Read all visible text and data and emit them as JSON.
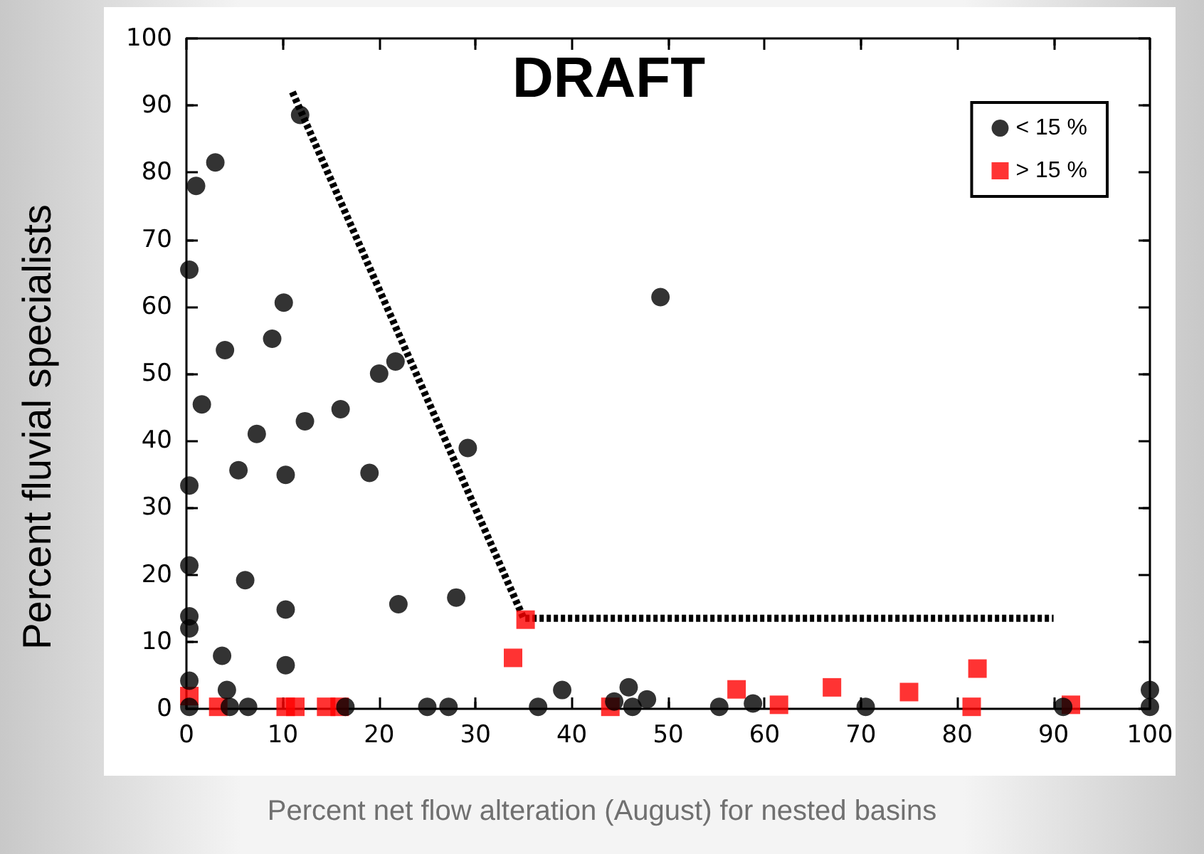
{
  "chart_data": {
    "type": "scatter",
    "xlabel": "Percent net flow alteration (August) for nested basins",
    "ylabel": "Percent fluvial specialists",
    "annotations": [
      "DRAFT"
    ],
    "xlim": [
      0,
      100
    ],
    "xticks": [
      0,
      10,
      20,
      30,
      40,
      50,
      60,
      70,
      80,
      90,
      100
    ],
    "ylim": [
      0,
      100
    ],
    "yticks": [
      0,
      10,
      20,
      30,
      40,
      50,
      60,
      70,
      80,
      90,
      100
    ],
    "grid": false,
    "legend": "top right",
    "series": [
      {
        "name": "< 15 %",
        "color": "#000000",
        "marker": "circle",
        "x": [
          0.3,
          1,
          3,
          0.3,
          0.3,
          0.3,
          0.3,
          0.3,
          0.3,
          1.6,
          4,
          3.7,
          4.2,
          4.5,
          5.4,
          6.1,
          6.4,
          7.3,
          8.9,
          10.1,
          10.3,
          10.3,
          10.3,
          11.8,
          12.3,
          16,
          16.5,
          19,
          20,
          21.7,
          22,
          25,
          27.2,
          28,
          29.2,
          36.5,
          39,
          44.4,
          45.9,
          46.3,
          47.8,
          49.2,
          55.3,
          58.8,
          70.5,
          91,
          100,
          100
        ],
        "values": [
          65.5,
          78,
          81.5,
          33.3,
          21.4,
          13.8,
          12,
          4.2,
          0.3,
          45.4,
          53.5,
          7.9,
          2.8,
          0.3,
          35.6,
          19.2,
          0.3,
          41,
          55.2,
          60.6,
          34.9,
          14.8,
          6.5,
          88.6,
          42.9,
          44.7,
          0.3,
          35.2,
          50,
          51.8,
          15.6,
          0.3,
          0.3,
          16.6,
          38.9,
          0.3,
          2.8,
          1.1,
          3.2,
          0.3,
          1.4,
          61.4,
          0.3,
          0.8,
          0.3,
          0.3,
          2.8,
          0.3
        ]
      },
      {
        "name": "> 15 %",
        "color": "#ff0000",
        "marker": "square",
        "x": [
          0.3,
          3.3,
          10.3,
          11.3,
          14.5,
          15.9,
          33.9,
          35.2,
          44,
          57.1,
          61.5,
          67,
          75,
          81.5,
          82.1,
          91.8
        ],
        "values": [
          1.9,
          0.3,
          0.3,
          0.3,
          0.3,
          0.3,
          7.6,
          13.3,
          0.3,
          2.9,
          0.6,
          3.2,
          2.5,
          0.3,
          6,
          0.6
        ]
      },
      {
        "type": "line",
        "color": "#000000",
        "marker": "none",
        "line_style": "dashed",
        "x": [
          11,
          35,
          90
        ],
        "values": [
          92,
          13.5,
          13.5
        ]
      }
    ]
  }
}
